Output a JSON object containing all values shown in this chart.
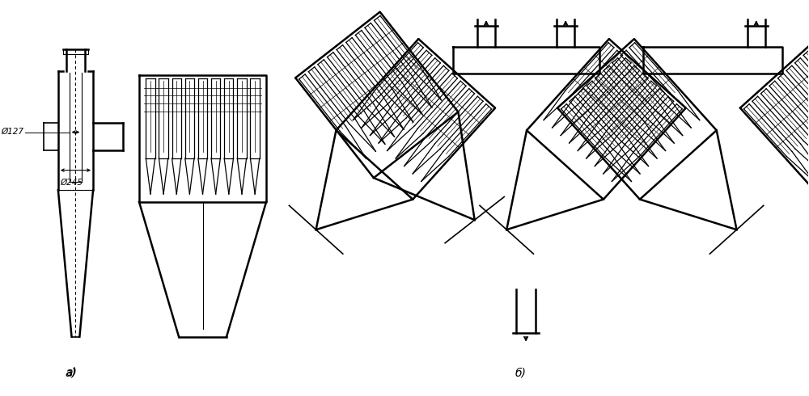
{
  "bg_color": "#ffffff",
  "line_color": "#000000",
  "label_a": "a)",
  "label_b": "б)",
  "dim_d127": "Ø127",
  "dim_d245": "Ø245",
  "figsize": [
    10.0,
    4.9
  ],
  "dpi": 100
}
